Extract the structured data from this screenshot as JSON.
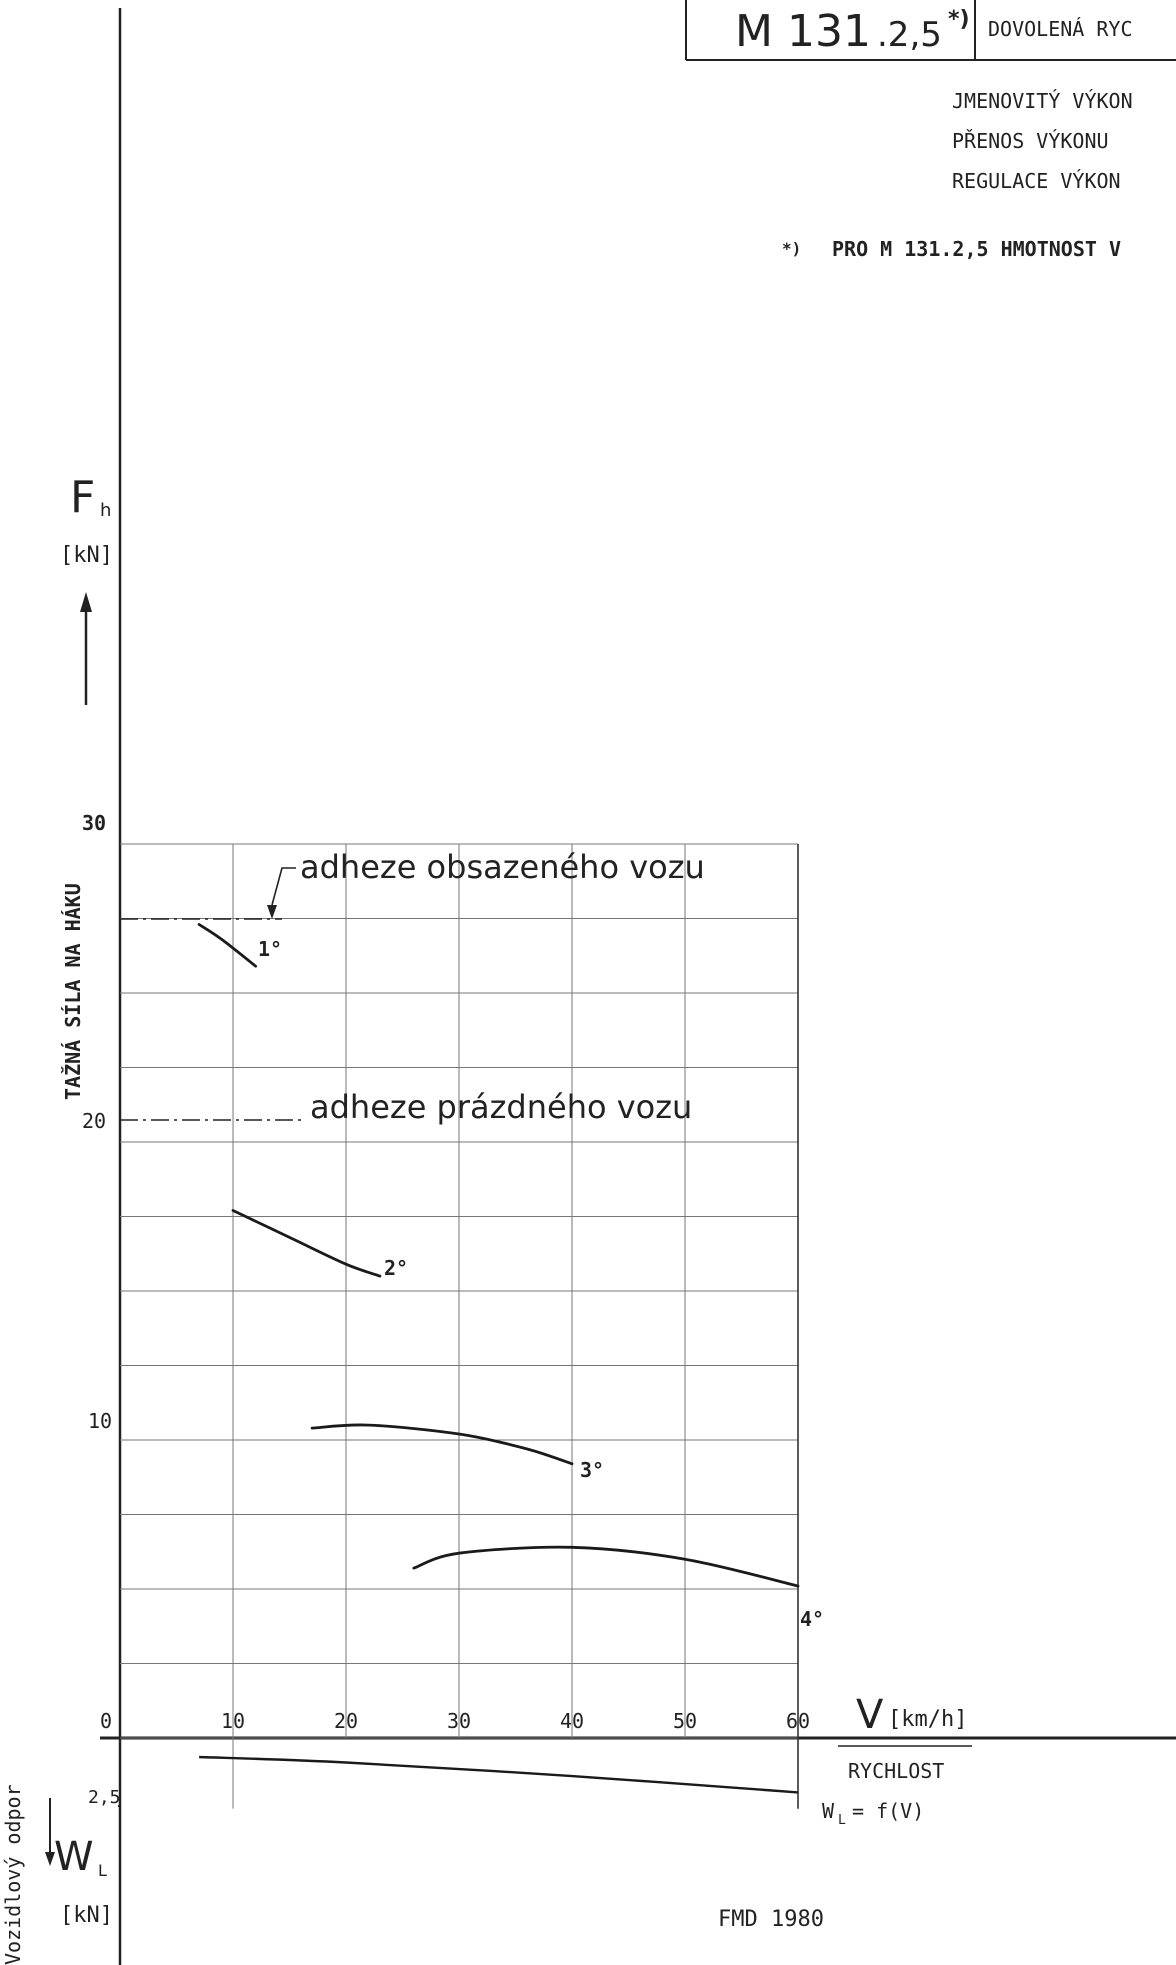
{
  "header": {
    "model_prefix": "M 131",
    "model_suffix": ".2,5",
    "model_mark": "*)",
    "speed_label": "DOVOLENÁ RYC",
    "spec_lines": [
      "JMENOVITÝ VÝKON",
      "PŘENOS VÝKONU",
      "REGULACE VÝKON"
    ],
    "footnote_mark": "*)",
    "footnote_text": "PRO M 131.2,5 HMOTNOST V"
  },
  "chart_data": [
    {
      "type": "line",
      "ylabel": "TAŽNÁ SÍLA NA HÁKU",
      "ysymbol": "F",
      "ysubscript": "h",
      "yunit": "[kN]",
      "xsymbol": "V",
      "xunit": "[km/h]",
      "xlabel": "RYCHLOST",
      "xlim": [
        0,
        60
      ],
      "ylim": [
        0,
        30
      ],
      "x_ticks": [
        "10",
        "20",
        "30",
        "40",
        "50",
        "60"
      ],
      "x_origin_label": "0",
      "y_ticks": [
        "10",
        "20",
        "30"
      ],
      "grid": true,
      "series": [
        {
          "name": "1°",
          "x": [
            7,
            9,
            12
          ],
          "y": [
            27.3,
            26.8,
            25.9
          ]
        },
        {
          "name": "2°",
          "x": [
            10,
            15,
            20,
            23
          ],
          "y": [
            17.7,
            16.8,
            15.9,
            15.5
          ]
        },
        {
          "name": "3°",
          "x": [
            17,
            22,
            30,
            36,
            40
          ],
          "y": [
            10.4,
            10.5,
            10.2,
            9.7,
            9.2
          ]
        },
        {
          "name": "4°",
          "x": [
            26,
            30,
            40,
            50,
            60
          ],
          "y": [
            5.7,
            6.2,
            6.4,
            6.0,
            5.1
          ]
        }
      ],
      "annotations": [
        {
          "text": "adheze obsazeného vozu",
          "y": 27
        },
        {
          "text": "adheze prázdného vozu",
          "y": 20.4
        }
      ]
    },
    {
      "type": "line",
      "ylabel": "Vozidlový odpor",
      "ysymbol": "W",
      "ysubscript": "L",
      "yunit": "[kN]",
      "y_ticks": [
        "2,5"
      ],
      "series": [
        {
          "name": "W_L = f(V)",
          "x": [
            7,
            20,
            40,
            60
          ],
          "y": [
            0.7,
            0.9,
            1.4,
            2.0
          ]
        }
      ],
      "formula": "= f(V)"
    }
  ],
  "footer": {
    "text": "FMD 1980"
  }
}
